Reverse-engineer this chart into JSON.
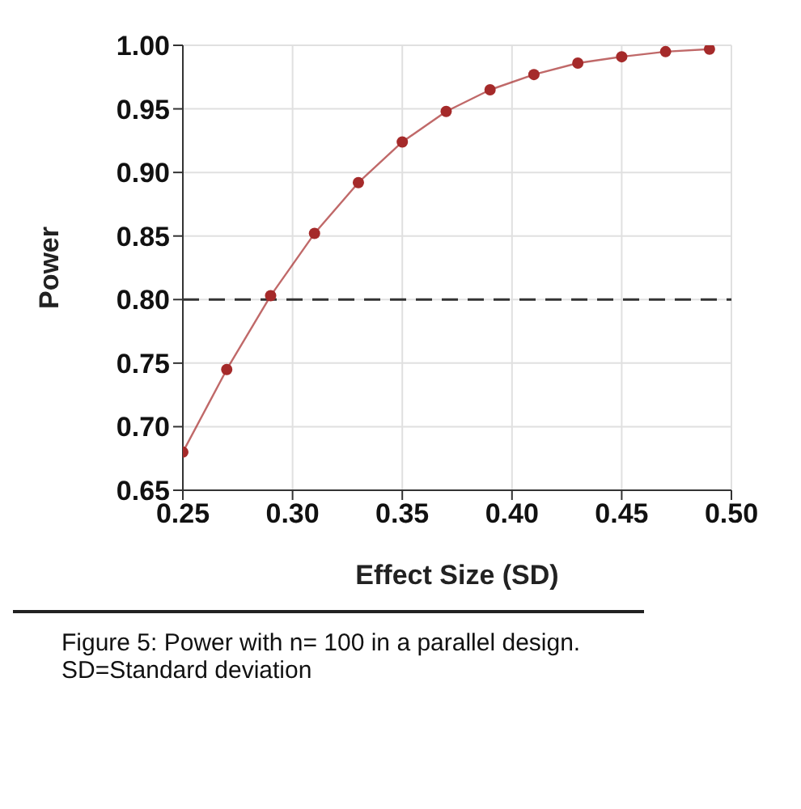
{
  "chart_data": {
    "type": "line",
    "xlabel": "Effect Size (SD)",
    "ylabel": "Power",
    "x": [
      0.25,
      0.27,
      0.29,
      0.31,
      0.33,
      0.35,
      0.37,
      0.39,
      0.41,
      0.43,
      0.45,
      0.47,
      0.49
    ],
    "series": [
      {
        "color": "#a52a2a",
        "values": [
          0.68,
          0.745,
          0.803,
          0.852,
          0.892,
          0.924,
          0.948,
          0.965,
          0.977,
          0.986,
          0.991,
          0.995,
          0.997
        ]
      }
    ],
    "xlim": [
      0.25,
      0.5
    ],
    "xticks": [
      0.25,
      {
        "value": 0.3,
        "label": "0.30"
      },
      0.35,
      {
        "value": 0.4,
        "label": "0.40"
      },
      0.45,
      {
        "value": 0.5,
        "label": "0.50"
      }
    ],
    "ylim": [
      0.65,
      1.0
    ],
    "yticks": [
      0.65,
      {
        "value": 0.7,
        "label": "0.70"
      },
      0.75,
      {
        "value": 0.8,
        "label": "0.80"
      },
      0.85,
      {
        "value": 0.9,
        "label": "0.90"
      },
      0.95,
      {
        "value": 1.0,
        "label": "1.00"
      }
    ],
    "ref_lines": [
      {
        "axis": "y",
        "value": 0.8,
        "color": "#333333",
        "line_style": "dashed"
      }
    ],
    "grid": true,
    "marker": "circle",
    "line_style": "solid",
    "annotations": [
      "Figure 5: Power with n= 100 in a parallel design. SD=Standard deviation"
    ]
  }
}
